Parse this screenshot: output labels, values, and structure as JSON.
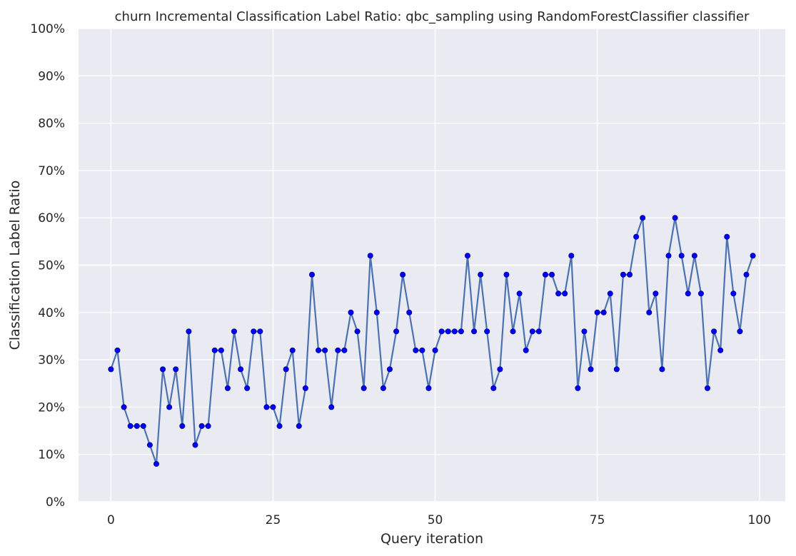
{
  "chart_data": {
    "type": "line",
    "title": "churn Incremental Classification Label Ratio: qbc_sampling using RandomForestClassifier classifier",
    "xlabel": "Query iteration",
    "ylabel": "Classification Label Ratio",
    "xlim": [
      -5,
      104
    ],
    "ylim": [
      0,
      1
    ],
    "x_ticks": [
      0,
      25,
      50,
      75,
      100
    ],
    "x_tick_labels": [
      "0",
      "25",
      "50",
      "75",
      "100"
    ],
    "y_ticks": [
      0,
      0.1,
      0.2,
      0.3,
      0.4,
      0.5,
      0.6,
      0.7,
      0.8,
      0.9,
      1.0
    ],
    "y_tick_labels": [
      "0%",
      "10%",
      "20%",
      "30%",
      "40%",
      "50%",
      "60%",
      "70%",
      "80%",
      "90%",
      "100%"
    ],
    "grid": true,
    "colors": {
      "line": "#4c72b0",
      "marker": "#0000ff",
      "background": "#eaeaf2",
      "grid": "#ffffff"
    },
    "series": [
      {
        "x": [
          0,
          1,
          2,
          3,
          4,
          5,
          6,
          7,
          8,
          9,
          10,
          11,
          12,
          13,
          14,
          15,
          16,
          17,
          18,
          19,
          20,
          21,
          22,
          23,
          24,
          25,
          26,
          27,
          28,
          29,
          30,
          31,
          32,
          33,
          34,
          35,
          36,
          37,
          38,
          39,
          40,
          41,
          42,
          43,
          44,
          45,
          46,
          47,
          48,
          49,
          50,
          51,
          52,
          53,
          54,
          55,
          56,
          57,
          58,
          59,
          60,
          61,
          62,
          63,
          64,
          65,
          66,
          67,
          68,
          69,
          70,
          71,
          72,
          73,
          74,
          75,
          76,
          77,
          78,
          79,
          80,
          81,
          82,
          83,
          84,
          85,
          86,
          87,
          88,
          89,
          90,
          91,
          92,
          93,
          94,
          95,
          96,
          97,
          98,
          99
        ],
        "values": [
          0.28,
          0.32,
          0.2,
          0.16,
          0.16,
          0.16,
          0.12,
          0.08,
          0.28,
          0.2,
          0.28,
          0.16,
          0.36,
          0.12,
          0.16,
          0.16,
          0.32,
          0.32,
          0.24,
          0.36,
          0.28,
          0.24,
          0.36,
          0.36,
          0.2,
          0.2,
          0.16,
          0.28,
          0.32,
          0.16,
          0.24,
          0.48,
          0.32,
          0.32,
          0.2,
          0.32,
          0.32,
          0.4,
          0.36,
          0.24,
          0.52,
          0.4,
          0.24,
          0.28,
          0.36,
          0.48,
          0.4,
          0.32,
          0.32,
          0.24,
          0.32,
          0.36,
          0.36,
          0.36,
          0.36,
          0.52,
          0.36,
          0.48,
          0.36,
          0.24,
          0.28,
          0.48,
          0.36,
          0.44,
          0.32,
          0.36,
          0.36,
          0.48,
          0.48,
          0.44,
          0.44,
          0.52,
          0.24,
          0.36,
          0.28,
          0.4,
          0.4,
          0.44,
          0.28,
          0.48,
          0.48,
          0.56,
          0.6,
          0.4,
          0.44,
          0.28,
          0.52,
          0.6,
          0.52,
          0.44,
          0.52,
          0.44,
          0.24,
          0.36,
          0.32,
          0.56,
          0.44,
          0.36,
          0.48,
          0.52
        ]
      }
    ]
  }
}
